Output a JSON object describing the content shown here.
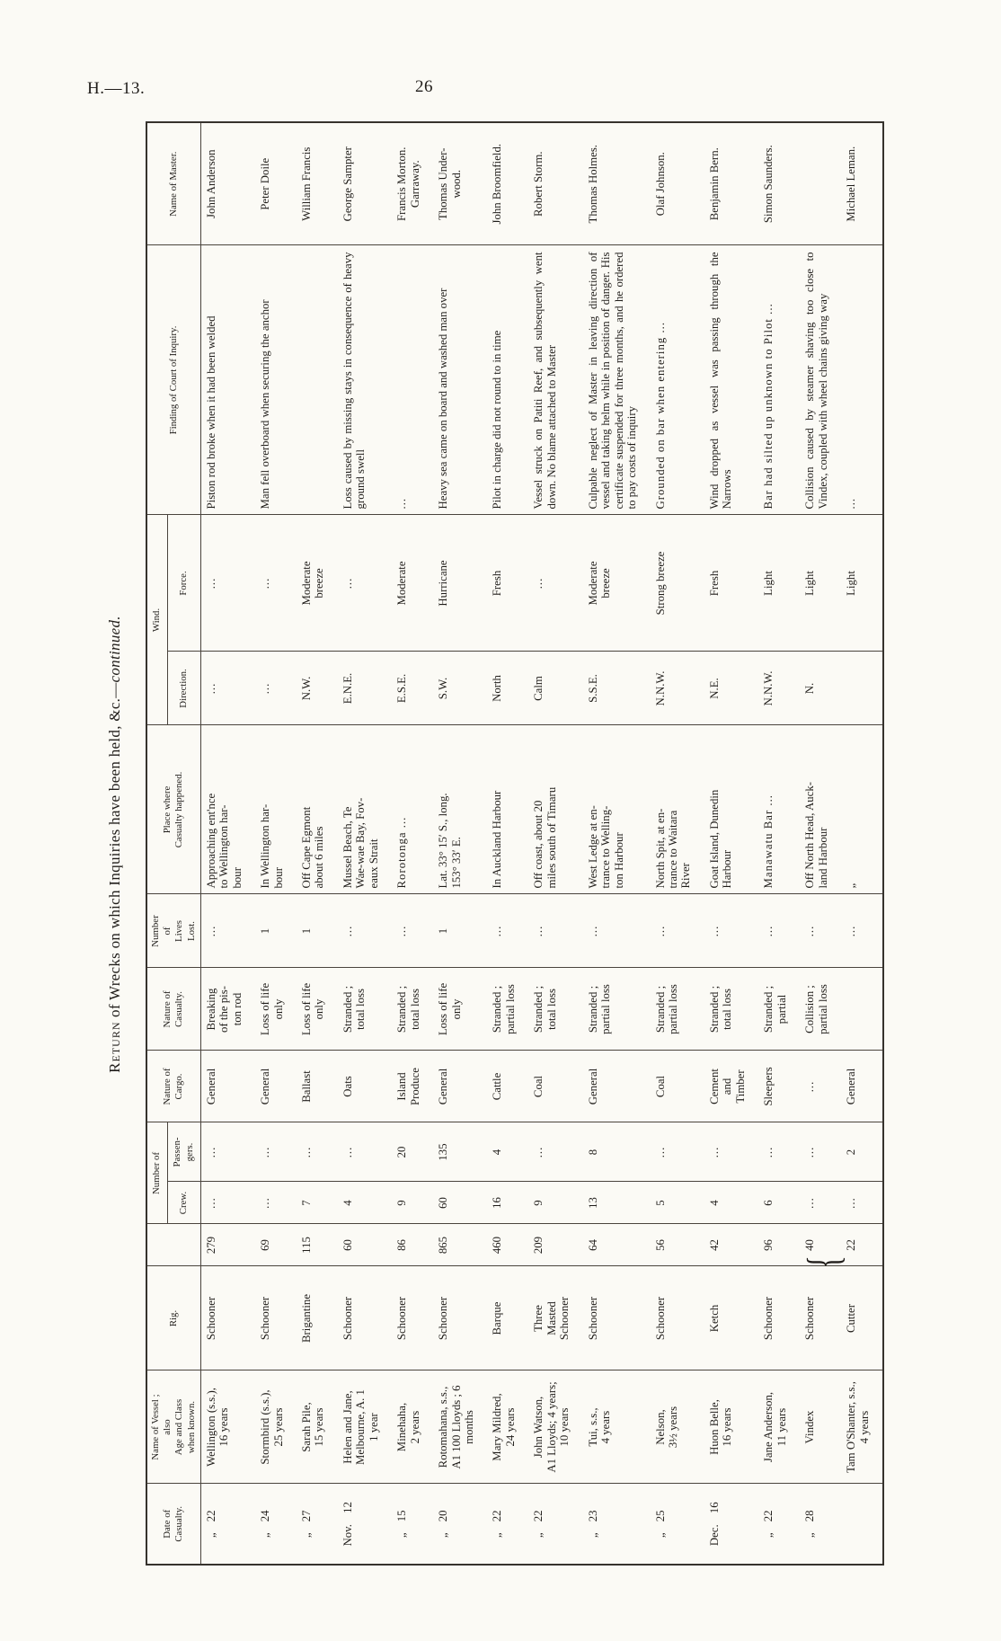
{
  "page": {
    "doc_ref": "H.—13.",
    "page_number": "26"
  },
  "title": {
    "lead": "Return",
    "rest": " of Wrecks on which Inquiries have been held, &c.—",
    "cont": "continued."
  },
  "table": {
    "headers": {
      "date": "Date of\nCasualty.",
      "vessel": "Name of Vessel ;\nalso\nAge and Class\nwhen known.",
      "rig": "Rig.",
      "tons": "",
      "number_of": "Number of",
      "crew": "Crew.",
      "passengers": "Passen-\ngers.",
      "cargo": "Nature of\nCargo.",
      "casualty": "Nature of\nCasualty.",
      "lives": "Number\nof\nLives\nLost.",
      "place": "Place where\nCasualty happened.",
      "wind": "Wind.",
      "direction": "Direction.",
      "force": "Force.",
      "finding": "Finding of Court of Inquiry.",
      "master": "Name of Master."
    },
    "rows": [
      {
        "date": "„ 22",
        "vessel": "Wellington (s.s.),\n16 years",
        "rig": "Schooner",
        "tons": "279",
        "crew": "...",
        "passengers": "...",
        "cargo": "General",
        "casualty": "Breaking\nof the pis-\nton rod",
        "lives": "...",
        "place": "Approaching ent'nce\nto Wellington har-\nbour",
        "direction": "...",
        "force": "...",
        "finding": "Piston rod broke when it had been welded",
        "master": "John Anderson"
      },
      {
        "date": "„ 24",
        "vessel": "Stormbird (s.s.),\n25 years",
        "rig": "Schooner",
        "tons": "69",
        "crew": "...",
        "passengers": "...",
        "cargo": "General",
        "casualty": "Loss of life\nonly",
        "lives": "1",
        "place": "In Wellington har-\nbour",
        "direction": "...",
        "force": "...",
        "finding": "Man fell overboard when securing the anchor",
        "master": "Peter Doile"
      },
      {
        "date": "„ 27",
        "vessel": "Sarah Pile,\n15 years",
        "rig": "Brigantine",
        "tons": "115",
        "crew": "7",
        "passengers": "...",
        "cargo": "Ballast",
        "casualty": "Loss of life\nonly",
        "lives": "1",
        "place": "Off Cape Egmont\nabout 6 miles",
        "direction": "N.W.",
        "force": "Moderate\nbreeze",
        "finding": "",
        "master": "William Francis"
      },
      {
        "date": "Nov. 12",
        "vessel": "Helen and Jane,\nMelbourne, A. 1\n1 year",
        "rig": "Schooner",
        "tons": "60",
        "crew": "4",
        "passengers": "...",
        "cargo": "Oats",
        "casualty": "Stranded ;\ntotal loss",
        "lives": "...",
        "place": "Mussel Beach, Te\nWae-wae Bay, Fov-\neaux Strait",
        "direction": "E.N.E.",
        "force": "...",
        "finding": "Loss caused by missing stays in consequence of heavy ground swell",
        "master": "George Sampter"
      },
      {
        "date": "„ 15",
        "vessel": "Minehaha,\n2 years",
        "rig": "Schooner",
        "tons": "86",
        "crew": "9",
        "passengers": "20",
        "cargo": "Island\nProduce",
        "casualty": "Stranded ;\ntotal loss",
        "lives": "...",
        "place": "Rorotonga ...",
        "direction": "E.S.E.",
        "force": "Moderate",
        "finding": "...",
        "master": "Francis Morton.\nGarraway."
      },
      {
        "date": "„ 20",
        "vessel": "Rotomahana, s.s.,\nA1 100 Lloyds ; 6\nmonths",
        "rig": "Schooner",
        "tons": "865",
        "crew": "60",
        "passengers": "135",
        "cargo": "General",
        "casualty": "Loss of life\nonly",
        "lives": "1",
        "place": "Lat. 33° 15′ S., long.\n153° 33′ E.",
        "direction": "S.W.",
        "force": "Hurricane",
        "finding": "Heavy sea came on board and washed man over",
        "master": "Thomas Under-\nwood."
      },
      {
        "date": "„ 22",
        "vessel": "Mary Mildred,\n24 years",
        "rig": "Barque",
        "tons": "460",
        "crew": "16",
        "passengers": "4",
        "cargo": "Cattle",
        "casualty": "Stranded ;\npartial loss",
        "lives": "...",
        "place": "In Auckland Harbour",
        "direction": "North",
        "force": "Fresh",
        "finding": "Pilot in charge did not round to in time",
        "master": "John Broomfield."
      },
      {
        "date": "„ 22",
        "vessel": "John Watson,\nA1 Lloyds; 4 years;\n10 years",
        "rig": "Three\nMasted\nSchooner",
        "tons": "209",
        "crew": "9",
        "passengers": "...",
        "cargo": "Coal",
        "casualty": "Stranded ;\ntotal loss",
        "lives": "...",
        "place": "Off coast, about 20\nmiles south of Timaru",
        "direction": "Calm",
        "force": "...",
        "finding": "Vessel struck on Patiti Reef, and subsequently went down. No blame attached to Master",
        "master": "Robert Storm."
      },
      {
        "date": "„ 23",
        "vessel": "Tui, s.s.,\n4 years",
        "rig": "Schooner",
        "tons": "64",
        "crew": "13",
        "passengers": "8",
        "cargo": "General",
        "casualty": "Stranded ;\npartial loss",
        "lives": "...",
        "place": "West Ledge at en-\ntrance to Welling-\nton Harbour",
        "direction": "S.S.E.",
        "force": "Moderate\nbreeze",
        "finding": "Culpable neglect of Master in leaving direction of vessel and taking helm while in position of danger. His certificate suspended for three months, and he ordered to pay costs of inquiry",
        "master": "Thomas Holmes."
      },
      {
        "date": "„ 25",
        "vessel": "Nelson,\n3½ years",
        "rig": "Schooner",
        "tons": "56",
        "crew": "5",
        "passengers": "...",
        "cargo": "Coal",
        "casualty": "Stranded ;\npartial loss",
        "lives": "...",
        "place": "North Spit, at en-\ntrance to Waitara\nRiver",
        "direction": "N.N.W.",
        "force": "Strong breeze",
        "finding": "Grounded on bar when entering ...",
        "master": "Olaf Johnson."
      },
      {
        "date": "Dec. 16",
        "vessel": "Huon Belle,\n16 years",
        "rig": "Ketch",
        "tons": "42",
        "crew": "4",
        "passengers": "...",
        "cargo": "Cement\nand\nTimber",
        "casualty": "Stranded ;\ntotal loss",
        "lives": "...",
        "place": "Goat Island, Dunedin\nHarbour",
        "direction": "N.E.",
        "force": "Fresh",
        "finding": "Wind dropped as vessel was passing through the Narrows",
        "master": "Benjamin Bern."
      },
      {
        "date": "„ 22",
        "vessel": "Jane Anderson,\n11 years",
        "rig": "Schooner",
        "tons": "96",
        "crew": "6",
        "passengers": "...",
        "cargo": "Sleepers",
        "casualty": "Stranded ;\npartial",
        "lives": "...",
        "place": "Manawatu Bar ...",
        "direction": "N.N.W.",
        "force": "Light",
        "finding": "Bar had silted up unknown to Pilot ...",
        "master": "Simon Saunders."
      },
      {
        "date": "„ 28",
        "vessel": "Vindex",
        "rig": "Schooner",
        "tons": "40",
        "tons_brace": "{",
        "crew": "...",
        "passengers": "...",
        "cargo": "...",
        "casualty": "Collision ;\npartial loss",
        "lives": "...",
        "place": "Off North Head, Auck-\nland Harbour",
        "direction": "N.",
        "force": "Light",
        "finding": "Collision caused by steamer shaving too close to Vindex, coupled with wheel chains giving way",
        "master": ""
      },
      {
        "date": "",
        "vessel": "Tam O'Shanter, s.s.,\n4 years",
        "rig": "Cutter",
        "tons": "22",
        "crew": "...",
        "passengers": "2",
        "cargo": "General",
        "casualty": "",
        "lives": "...",
        "place": "„",
        "direction": "",
        "force": "Light",
        "finding": "...",
        "master": "Michael Leman."
      }
    ]
  }
}
